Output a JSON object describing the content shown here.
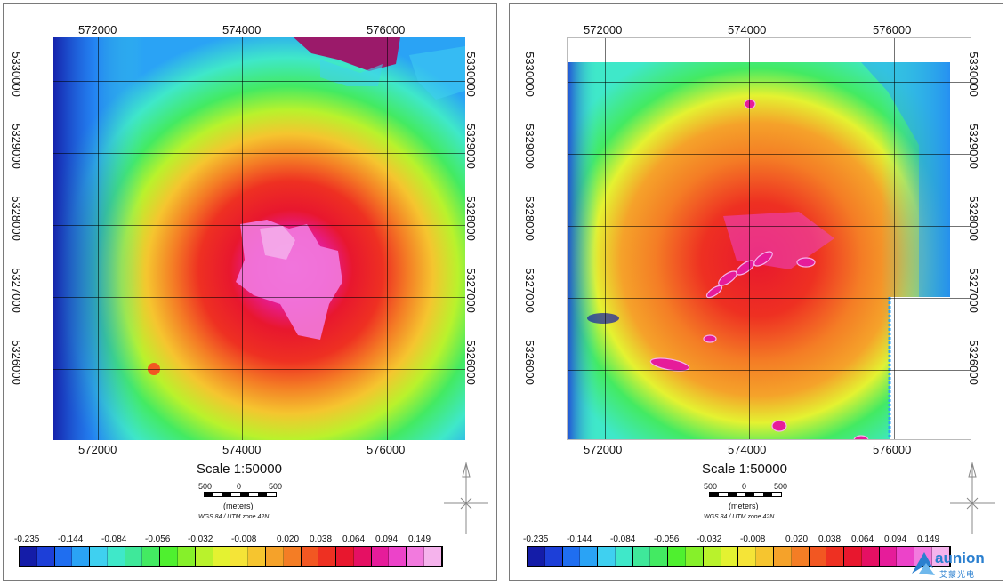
{
  "colors": [
    "#141ca8",
    "#1d3fd8",
    "#1f6ef0",
    "#2aa3f5",
    "#3fd0f0",
    "#3fe8c9",
    "#3fe89a",
    "#43ea62",
    "#4ff02f",
    "#86f02a",
    "#b9f22c",
    "#e4f231",
    "#f5e437",
    "#f6c52f",
    "#f5a22a",
    "#f47d25",
    "#f25722",
    "#ee3022",
    "#e8172e",
    "#e51063",
    "#e61c9a",
    "#ec43c9",
    "#f27ade",
    "#f5b3ec"
  ],
  "legend": {
    "values": [
      "-0.235",
      "-0.144",
      "-0.084",
      "-0.056",
      "-0.032",
      "-0.008",
      "0.020",
      "0.038",
      "0.064",
      "0.094",
      "0.149"
    ]
  },
  "panels": [
    {
      "id": "left",
      "x_ticks_top": [
        "572000",
        "574000",
        "576000"
      ],
      "x_ticks_bottom": [
        "572000",
        "574000",
        "576000"
      ],
      "y_ticks_left": [
        "5330000",
        "5329000",
        "5328000",
        "5327000",
        "5326000"
      ],
      "y_ticks_right": [
        "5330000",
        "5329000",
        "5328000",
        "5327000",
        "5326000"
      ],
      "scale_text": "Scale 1:50000",
      "scalebar_labels": [
        "500",
        "0",
        "500"
      ],
      "meters_label": "(meters)",
      "projection": "WGS 84 / UTM zone 42N"
    },
    {
      "id": "right",
      "x_ticks_top": [
        "572000",
        "574000",
        "576000"
      ],
      "x_ticks_bottom": [
        "572000",
        "574000",
        "576000"
      ],
      "y_ticks_left": [
        "5330000",
        "5329000",
        "5328000",
        "5327000",
        "5326000"
      ],
      "y_ticks_right": [
        "5330000",
        "5329000",
        "5328000",
        "5327000",
        "5326000"
      ],
      "scale_text": "Scale 1:50000",
      "scalebar_labels": [
        "500",
        "0",
        "500"
      ],
      "meters_label": "(meters)",
      "projection": "WGS 84 / UTM zone 42N"
    }
  ],
  "logo": {
    "name": "aunion",
    "sub": "艾蒙光电",
    "icon": "aunion-logo-icon"
  }
}
